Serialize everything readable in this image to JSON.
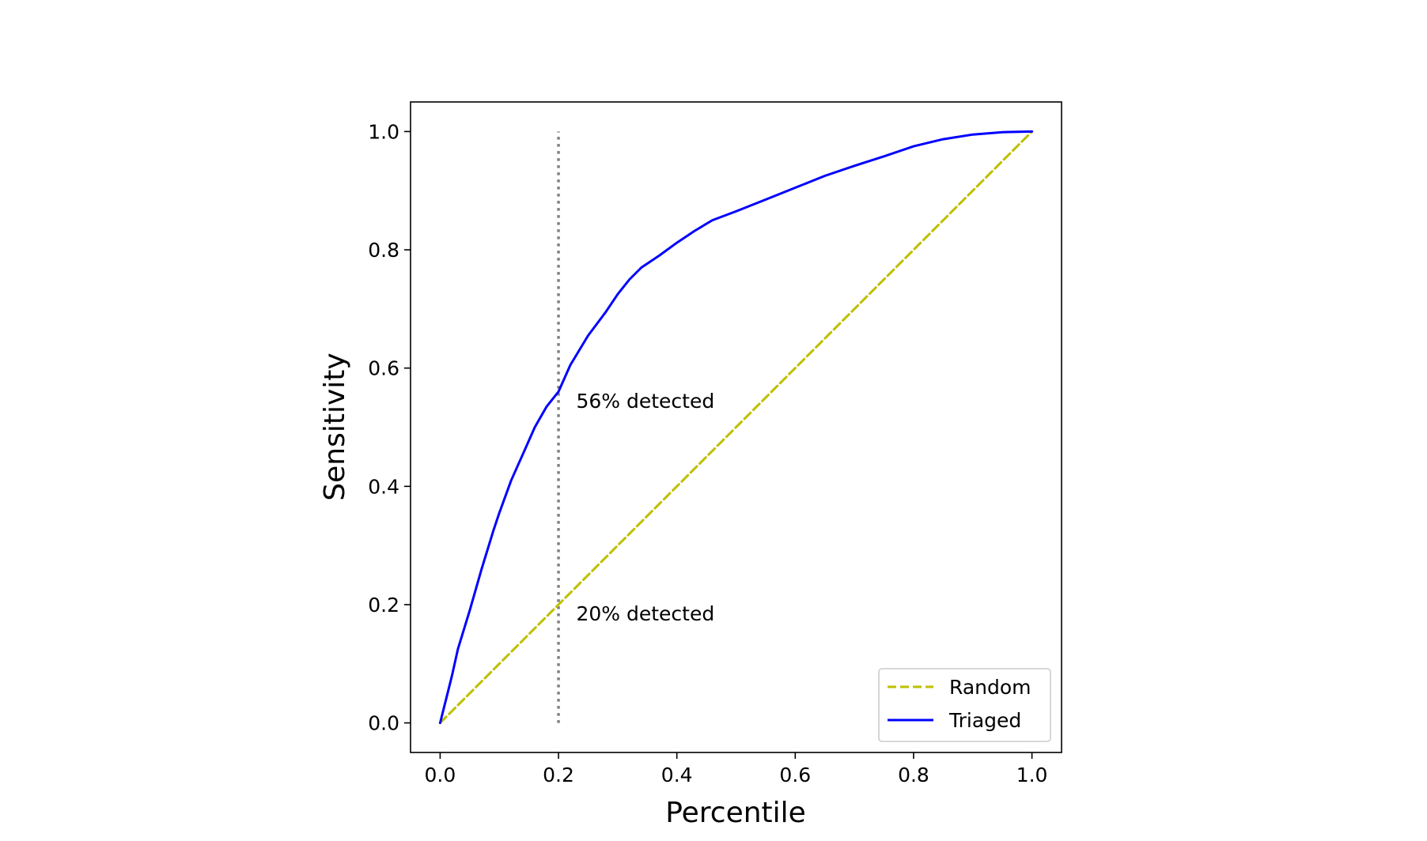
{
  "chart_data": {
    "type": "line",
    "title": "",
    "xlabel": "Percentile",
    "ylabel": "Sensitivity",
    "xlim": [
      -0.05,
      1.05
    ],
    "ylim": [
      -0.05,
      1.05
    ],
    "x_ticks": [
      0.0,
      0.2,
      0.4,
      0.6,
      0.8,
      1.0
    ],
    "x_tick_labels": [
      "0.0",
      "0.2",
      "0.4",
      "0.6",
      "0.8",
      "1.0"
    ],
    "y_ticks": [
      0.0,
      0.2,
      0.4,
      0.6,
      0.8,
      1.0
    ],
    "y_tick_labels": [
      "0.0",
      "0.2",
      "0.4",
      "0.6",
      "0.8",
      "1.0"
    ],
    "grid": false,
    "legend_position": "lower-right",
    "series": [
      {
        "name": "Random",
        "style": "dashed",
        "color": "#bfbf00",
        "x": [
          0.0,
          1.0
        ],
        "y": [
          0.0,
          1.0
        ]
      },
      {
        "name": "Triaged",
        "style": "solid",
        "color": "#0000ff",
        "x": [
          0.0,
          0.01,
          0.02,
          0.03,
          0.05,
          0.07,
          0.09,
          0.1,
          0.12,
          0.14,
          0.16,
          0.18,
          0.2,
          0.22,
          0.25,
          0.28,
          0.3,
          0.32,
          0.34,
          0.37,
          0.4,
          0.43,
          0.46,
          0.5,
          0.55,
          0.6,
          0.65,
          0.7,
          0.75,
          0.8,
          0.85,
          0.9,
          0.95,
          1.0
        ],
        "y": [
          0.0,
          0.04,
          0.08,
          0.125,
          0.19,
          0.26,
          0.325,
          0.355,
          0.41,
          0.455,
          0.5,
          0.535,
          0.56,
          0.605,
          0.655,
          0.695,
          0.725,
          0.75,
          0.77,
          0.79,
          0.812,
          0.832,
          0.85,
          0.865,
          0.885,
          0.905,
          0.925,
          0.942,
          0.958,
          0.975,
          0.987,
          0.995,
          0.999,
          1.0
        ]
      }
    ],
    "reference_line": {
      "x": 0.2,
      "style": "dotted",
      "color": "#808080",
      "y_range": [
        0.0,
        1.0
      ]
    },
    "annotations": [
      {
        "text": "56% detected",
        "x": 0.23,
        "y": 0.545
      },
      {
        "text": "20% detected",
        "x": 0.23,
        "y": 0.185
      }
    ]
  }
}
